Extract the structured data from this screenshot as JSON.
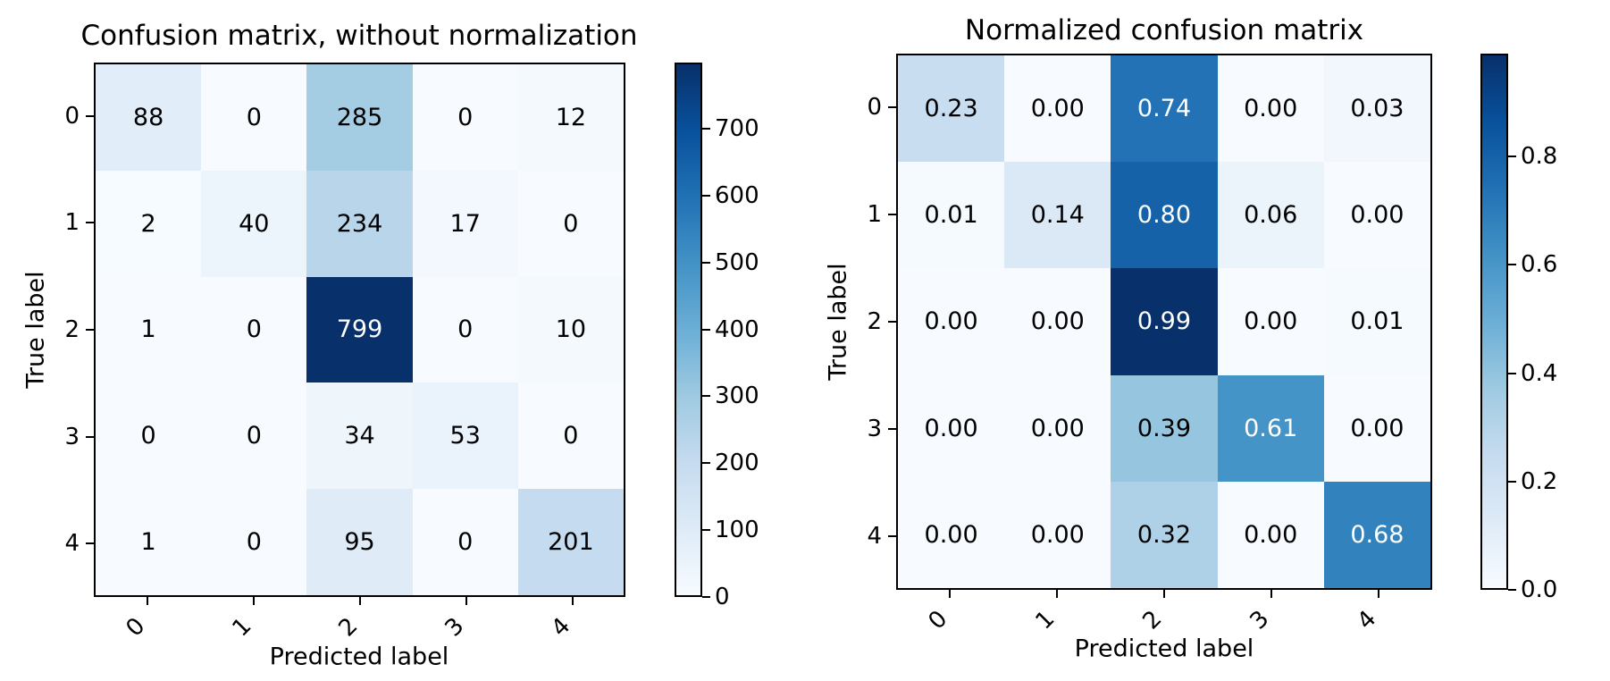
{
  "colors": {
    "background": "#ffffff",
    "axes_edge": "#000000",
    "cell_text_dark": "#000000",
    "cell_text_light": "#ffffff",
    "colormap_stops": [
      "#f7fbff",
      "#deebf7",
      "#c6dbef",
      "#9ecae1",
      "#6baed6",
      "#4292c6",
      "#2171b5",
      "#08519c",
      "#08306b"
    ]
  },
  "chart_data": [
    {
      "type": "heatmap",
      "title": "Confusion matrix, without normalization",
      "xlabel": "Predicted label",
      "ylabel": "True label",
      "x_tick_labels": [
        "0",
        "1",
        "2",
        "3",
        "4"
      ],
      "y_tick_labels": [
        "0",
        "1",
        "2",
        "3",
        "4"
      ],
      "values": [
        [
          88,
          0,
          285,
          0,
          12
        ],
        [
          2,
          40,
          234,
          17,
          0
        ],
        [
          1,
          0,
          799,
          0,
          10
        ],
        [
          0,
          0,
          34,
          53,
          0
        ],
        [
          1,
          0,
          95,
          0,
          201
        ]
      ],
      "cell_labels": [
        [
          "88",
          "0",
          "285",
          "0",
          "12"
        ],
        [
          "2",
          "40",
          "234",
          "17",
          "0"
        ],
        [
          "1",
          "0",
          "799",
          "0",
          "10"
        ],
        [
          "0",
          "0",
          "34",
          "53",
          "0"
        ],
        [
          "1",
          "0",
          "95",
          "0",
          "201"
        ]
      ],
      "vmin": 0,
      "vmax": 799,
      "colormap": "Blues",
      "legend_position": "right-colorbar",
      "grid": false,
      "colorbar": {
        "tick_values": [
          0,
          100,
          200,
          300,
          400,
          500,
          600,
          700
        ],
        "tick_labels": [
          "0",
          "100",
          "200",
          "300",
          "400",
          "500",
          "600",
          "700"
        ]
      }
    },
    {
      "type": "heatmap",
      "title": "Normalized confusion matrix",
      "xlabel": "Predicted label",
      "ylabel": "True label",
      "x_tick_labels": [
        "0",
        "1",
        "2",
        "3",
        "4"
      ],
      "y_tick_labels": [
        "0",
        "1",
        "2",
        "3",
        "4"
      ],
      "values": [
        [
          0.23,
          0.0,
          0.74,
          0.0,
          0.03
        ],
        [
          0.01,
          0.14,
          0.8,
          0.06,
          0.0
        ],
        [
          0.0,
          0.0,
          0.99,
          0.0,
          0.01
        ],
        [
          0.0,
          0.0,
          0.39,
          0.61,
          0.0
        ],
        [
          0.0,
          0.0,
          0.32,
          0.0,
          0.68
        ]
      ],
      "cell_labels": [
        [
          "0.23",
          "0.00",
          "0.74",
          "0.00",
          "0.03"
        ],
        [
          "0.01",
          "0.14",
          "0.80",
          "0.06",
          "0.00"
        ],
        [
          "0.00",
          "0.00",
          "0.99",
          "0.00",
          "0.01"
        ],
        [
          "0.00",
          "0.00",
          "0.39",
          "0.61",
          "0.00"
        ],
        [
          "0.00",
          "0.00",
          "0.32",
          "0.00",
          "0.68"
        ]
      ],
      "vmin": 0,
      "vmax": 0.99,
      "colormap": "Blues",
      "legend_position": "right-colorbar",
      "grid": false,
      "colorbar": {
        "tick_values": [
          0.0,
          0.2,
          0.4,
          0.6,
          0.8
        ],
        "tick_labels": [
          "0.0",
          "0.2",
          "0.4",
          "0.6",
          "0.8"
        ]
      }
    }
  ]
}
